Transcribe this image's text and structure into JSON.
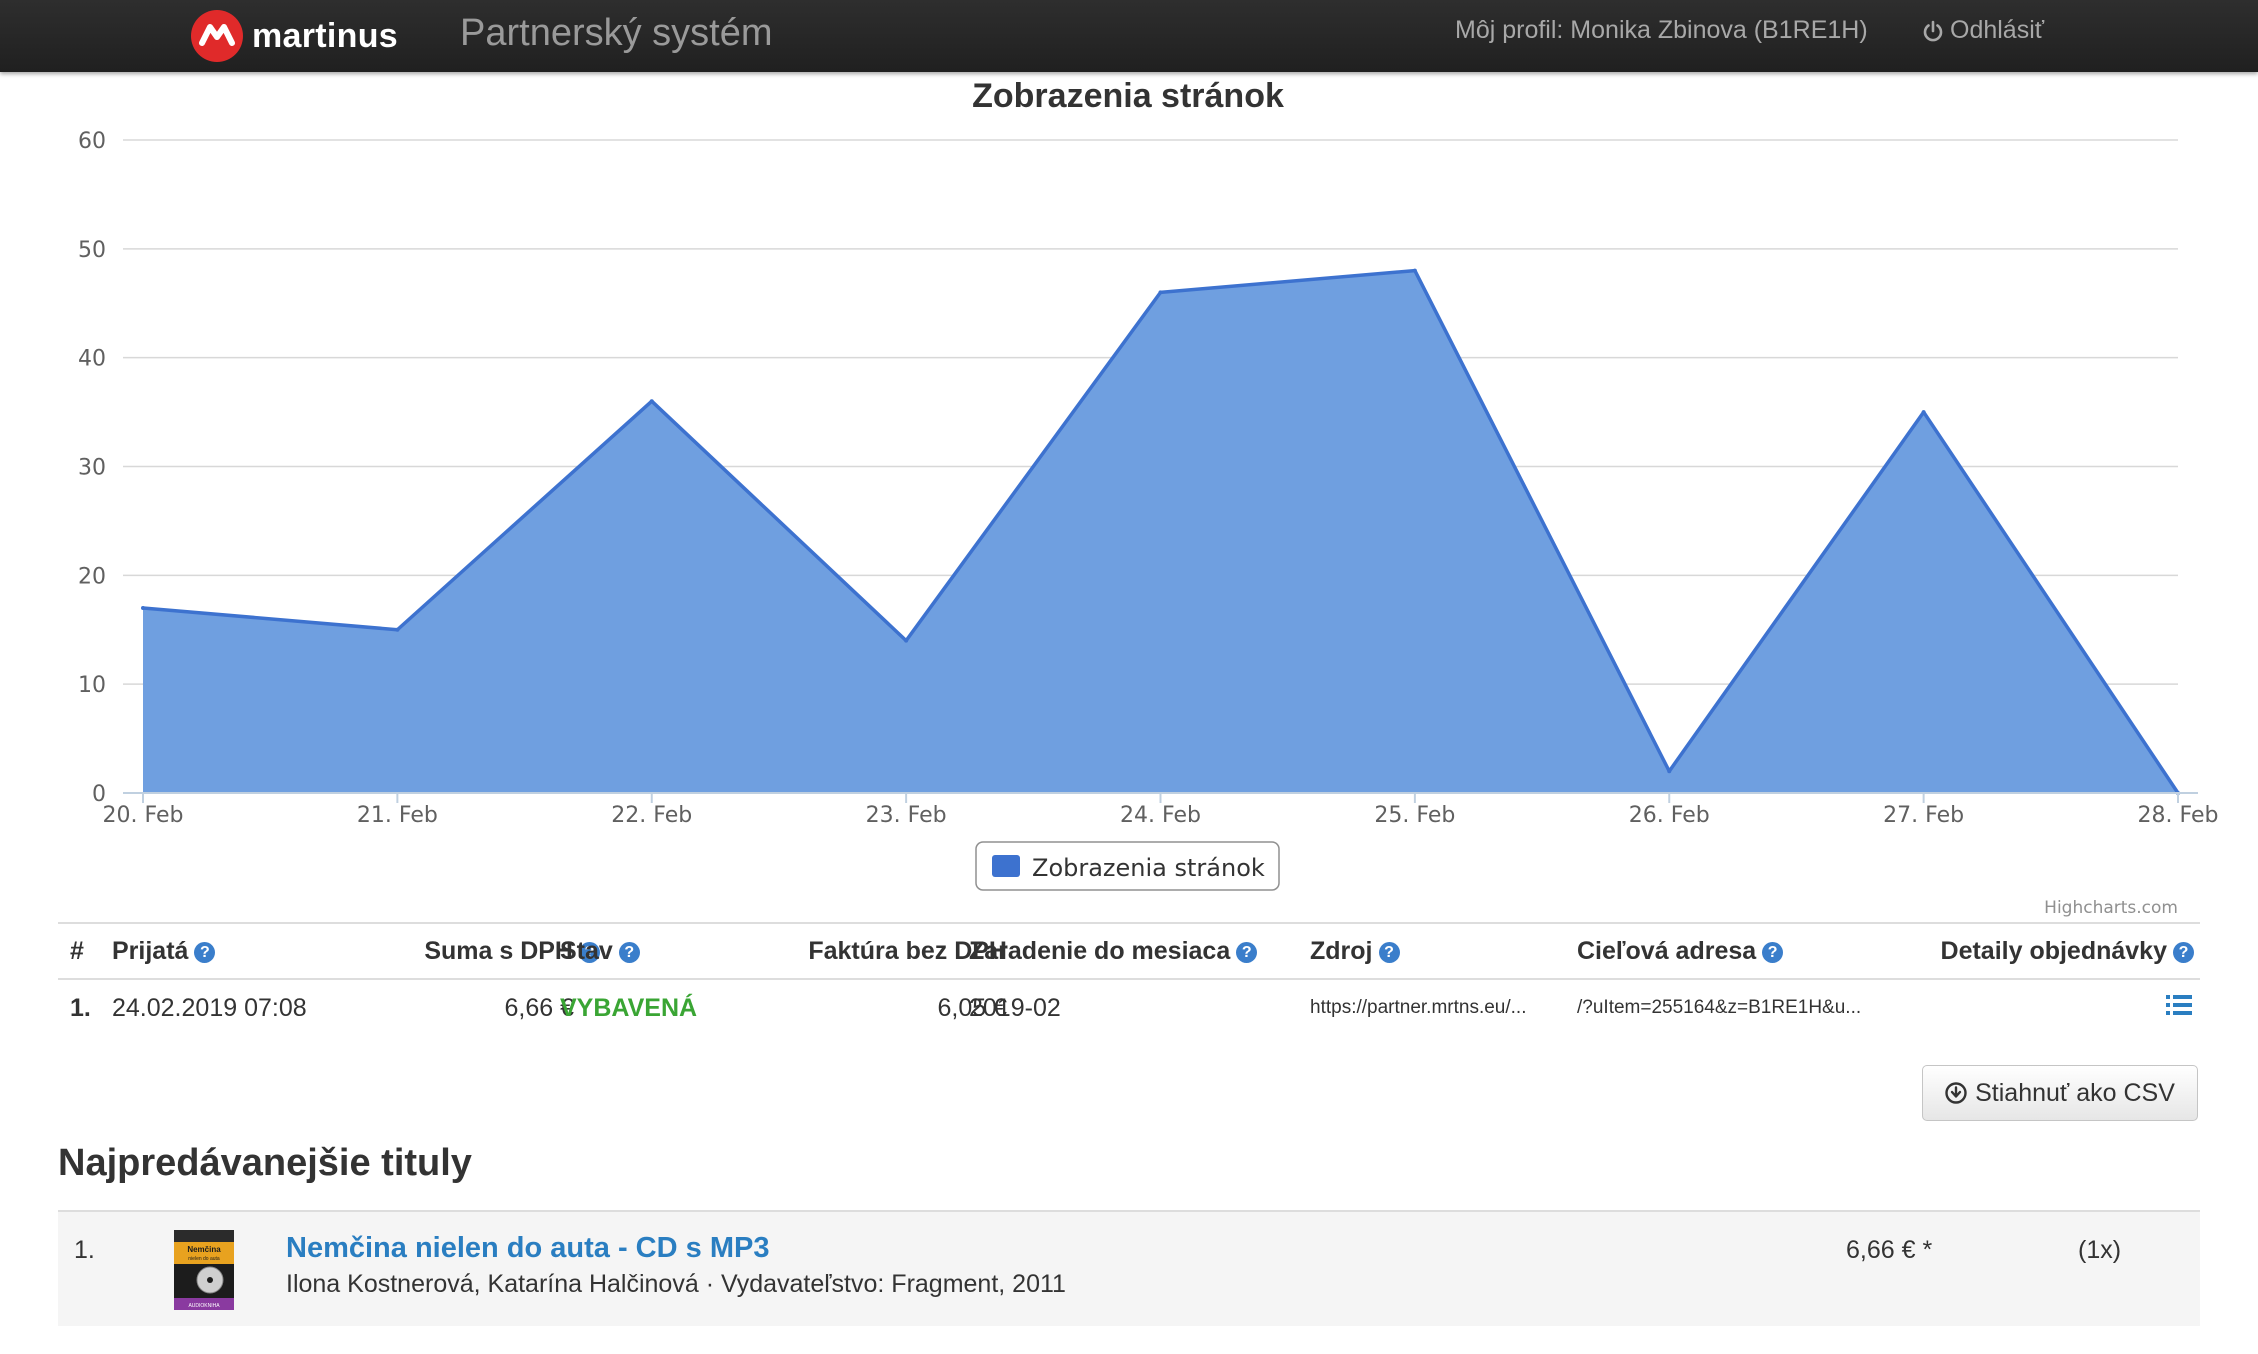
{
  "navbar": {
    "brand": "martinus",
    "app_title": "Partnerský systém",
    "profile": "Môj profil: Monika Zbinova (B1RE1H)",
    "logout": "Odhlásiť"
  },
  "chart_data": {
    "type": "area",
    "title": "Zobrazenia stránok",
    "categories": [
      "20. Feb",
      "21. Feb",
      "22. Feb",
      "23. Feb",
      "24. Feb",
      "25. Feb",
      "26. Feb",
      "27. Feb",
      "28. Feb"
    ],
    "series": [
      {
        "name": "Zobrazenia stránok",
        "values": [
          17,
          15,
          36,
          14,
          46,
          48,
          2,
          35,
          0
        ]
      }
    ],
    "ylim": [
      0,
      60
    ],
    "yticks": [
      0,
      10,
      20,
      30,
      40,
      50,
      60
    ],
    "grid": true,
    "legend": "bottom-center",
    "credits": "Highcharts.com",
    "colors": {
      "fill": "#6f9fe0",
      "line": "#3d72cf",
      "grid": "#d8d8d8",
      "axis": "#c0d0e0"
    }
  },
  "orders": {
    "headers": {
      "num": "#",
      "received": "Prijatá",
      "sum": "Suma s DPH",
      "status": "Stav",
      "invoice": "Faktúra bez DPH",
      "month": "Zaradenie do mesiaca",
      "source": "Zdroj",
      "target": "Cieľová adresa",
      "details": "Detaily objednávky"
    },
    "rows": [
      {
        "num": "1.",
        "received": "24.02.2019 07:08",
        "sum": "6,66 €",
        "status": "VYBAVENÁ",
        "invoice": "6,05 €",
        "month": "2019-02",
        "source": "https://partner.mrtns.eu/...",
        "target": "/?uItem=255164&z=B1RE1H&u..."
      }
    ],
    "help_icon": "question-circle-icon",
    "details_icon": "list-icon"
  },
  "csv_button": {
    "label": "Stiahnuť ako CSV",
    "icon": "download-circle-icon"
  },
  "bestsellers": {
    "title": "Najpredávanejšie tituly",
    "items": [
      {
        "rank": "1.",
        "title": "Nemčina nielen do auta - CD s MP3",
        "subtitle": "Ilona Kostnerová, Katarína Halčinová · Vydavateľstvo: Fragment, 2011",
        "price": "6,66 € *",
        "quantity": "(1x)",
        "cover_lettering": [
          "Nemčina",
          "nielen do auta",
          "AUDIOKNIHA"
        ]
      }
    ]
  }
}
